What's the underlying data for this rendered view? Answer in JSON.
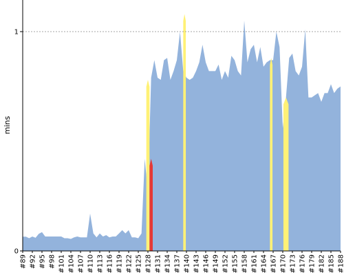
{
  "chart_data": {
    "type": "area",
    "ylabel": "mins",
    "ylim": [
      0,
      1.1
    ],
    "yticks": [
      0,
      1
    ],
    "grid": "dashed line at y=1",
    "legend": "none",
    "colors": {
      "fill": "#93b3dc",
      "yellow": "#fff176",
      "red": "#e53935",
      "grid": "#888888",
      "axis": "#000000"
    },
    "x_start": 89,
    "x_end": 188,
    "x_tick_labels": [
      "#89",
      "#92",
      "#95",
      "#98",
      "#101",
      "#104",
      "#107",
      "#110",
      "#113",
      "#116",
      "#119",
      "#122",
      "#125",
      "#128",
      "#131",
      "#134",
      "#137",
      "#140",
      "#143",
      "#146",
      "#149",
      "#152",
      "#155",
      "#158",
      "#161",
      "#164",
      "#167",
      "#170",
      "#173",
      "#176",
      "#179",
      "#182",
      "#185",
      "#188"
    ],
    "series": [
      {
        "values": [
          0.065,
          0.065,
          0.058,
          0.066,
          0.06,
          0.078,
          0.086,
          0.066,
          0.066,
          0.066,
          0.066,
          0.066,
          0.066,
          0.058,
          0.058,
          0.055,
          0.062,
          0.066,
          0.062,
          0.062,
          0.062,
          0.17,
          0.08,
          0.062,
          0.08,
          0.066,
          0.072,
          0.062,
          0.066,
          0.066,
          0.08,
          0.095,
          0.08,
          0.095,
          0.062,
          0.062,
          0.058,
          0.08,
          0.42,
          0.27,
          0.79,
          0.87,
          0.79,
          0.78,
          0.87,
          0.88,
          0.78,
          0.82,
          0.87,
          1.0,
          0.82,
          0.79,
          0.78,
          0.79,
          0.82,
          0.86,
          0.94,
          0.86,
          0.82,
          0.82,
          0.82,
          0.85,
          0.78,
          0.82,
          0.79,
          0.89,
          0.87,
          0.82,
          0.8,
          1.05,
          0.86,
          0.92,
          0.94,
          0.86,
          0.93,
          0.84,
          0.86,
          0.87,
          0.87,
          1.0,
          0.93,
          0.56,
          0.7,
          0.88,
          0.9,
          0.82,
          0.8,
          0.84,
          1.01,
          0.7,
          0.7,
          0.71,
          0.72,
          0.68,
          0.72,
          0.72,
          0.76,
          0.72,
          0.74,
          0.75
        ]
      }
    ],
    "highlights": [
      {
        "from": 127.5,
        "to": 128.5,
        "color": "yellow",
        "peak": 0.78
      },
      {
        "from": 128.5,
        "to": 129.5,
        "color": "red",
        "peak": 0.42
      },
      {
        "from": 139,
        "to": 139.8,
        "color": "yellow",
        "peak": 1.08
      },
      {
        "from": 166,
        "to": 166.8,
        "color": "yellow",
        "peak": 0.88
      },
      {
        "from": 170.2,
        "to": 171.8,
        "color": "yellow",
        "peak": 0.7
      }
    ]
  }
}
